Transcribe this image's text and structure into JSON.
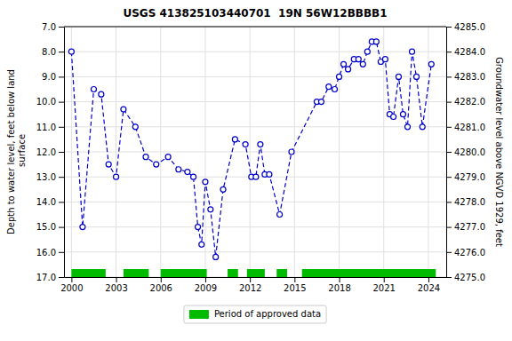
{
  "chart_data": {
    "type": "line",
    "title": "USGS 413825103440701  19N 56W12BBBB1",
    "ylabel": "Depth to water level, feet below land\n surface",
    "y2label": "Groundwater level above NGVD 1929, feet",
    "color": "#0000cc",
    "marker": "circle",
    "line_style": "dashed",
    "grid": true,
    "legend": "bottom",
    "x": [
      2000.0,
      2000.75,
      2001.5,
      2002.0,
      2002.5,
      2003.0,
      2003.5,
      2004.3,
      2005.0,
      2005.7,
      2006.5,
      2007.2,
      2007.8,
      2008.2,
      2008.5,
      2008.75,
      2009.0,
      2009.35,
      2009.7,
      2010.2,
      2011.0,
      2011.7,
      2012.1,
      2012.4,
      2012.7,
      2013.0,
      2013.3,
      2014.0,
      2014.8,
      2016.5,
      2016.8,
      2017.3,
      2017.7,
      2018.0,
      2018.3,
      2018.6,
      2019.0,
      2019.3,
      2019.6,
      2019.9,
      2020.2,
      2020.5,
      2020.8,
      2021.1,
      2021.4,
      2021.65,
      2022.0,
      2022.3,
      2022.6,
      2022.9,
      2023.2,
      2023.6,
      2024.2
    ],
    "values": [
      8.0,
      15.0,
      9.5,
      9.7,
      12.5,
      13.0,
      10.3,
      11.0,
      12.2,
      12.5,
      12.2,
      12.7,
      12.8,
      13.0,
      15.0,
      15.7,
      13.2,
      14.3,
      16.2,
      13.5,
      11.5,
      11.7,
      13.0,
      13.0,
      11.7,
      12.9,
      12.9,
      14.5,
      12.0,
      10.0,
      10.0,
      9.4,
      9.5,
      9.0,
      8.5,
      8.7,
      8.3,
      8.3,
      8.5,
      8.0,
      7.6,
      7.6,
      8.4,
      8.3,
      10.5,
      10.6,
      9.0,
      10.5,
      11.0,
      8.0,
      9.0,
      11.0,
      8.5
    ],
    "approved": {
      "name": "Period of approved data",
      "color": "#00bb00",
      "ranges": [
        [
          2000.0,
          2002.3
        ],
        [
          2003.5,
          2005.2
        ],
        [
          2006.0,
          2009.1
        ],
        [
          2010.5,
          2011.2
        ],
        [
          2011.8,
          2013.0
        ],
        [
          2013.8,
          2014.5
        ],
        [
          2015.5,
          2024.5
        ]
      ]
    },
    "xlim": [
      1999.5,
      2025.2
    ],
    "xticks": [
      2000,
      2003,
      2006,
      2009,
      2012,
      2015,
      2018,
      2021,
      2024
    ],
    "ylim": [
      17.0,
      7.0
    ],
    "yticks": [
      {
        "value": 7.0,
        "label": "7.0"
      },
      {
        "value": 8.0,
        "label": "8.0"
      },
      {
        "value": 9.0,
        "label": "9.0"
      },
      {
        "value": 10.0,
        "label": "10.0"
      },
      {
        "value": 11.0,
        "label": "11.0"
      },
      {
        "value": 12.0,
        "label": "12.0"
      },
      {
        "value": 13.0,
        "label": "13.0"
      },
      {
        "value": 14.0,
        "label": "14.0"
      },
      {
        "value": 15.0,
        "label": "15.0"
      },
      {
        "value": 16.0,
        "label": "16.0"
      },
      {
        "value": 17.0,
        "label": "17.0"
      }
    ],
    "y2lim": [
      4275.0,
      4285.0
    ],
    "y2ticks": [
      {
        "value": 4285.0,
        "label": "4285.0"
      },
      {
        "value": 4284.0,
        "label": "4284.0"
      },
      {
        "value": 4283.0,
        "label": "4283.0"
      },
      {
        "value": 4282.0,
        "label": "4282.0"
      },
      {
        "value": 4281.0,
        "label": "4281.0"
      },
      {
        "value": 4280.0,
        "label": "4280.0"
      },
      {
        "value": 4279.0,
        "label": "4279.0"
      },
      {
        "value": 4278.0,
        "label": "4278.0"
      },
      {
        "value": 4277.0,
        "label": "4277.0"
      },
      {
        "value": 4276.0,
        "label": "4276.0"
      },
      {
        "value": 4275.0,
        "label": "4275.0"
      }
    ]
  }
}
